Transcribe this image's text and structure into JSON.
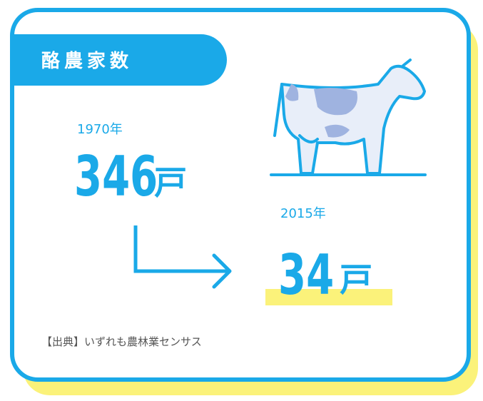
{
  "title": "酪農家数",
  "items": [
    {
      "year": "1970年",
      "value": 346,
      "unit": "戸"
    },
    {
      "year": "2015年",
      "value": 34,
      "unit": "戸"
    }
  ],
  "source": "【出典】いずれも農林業センサス"
}
